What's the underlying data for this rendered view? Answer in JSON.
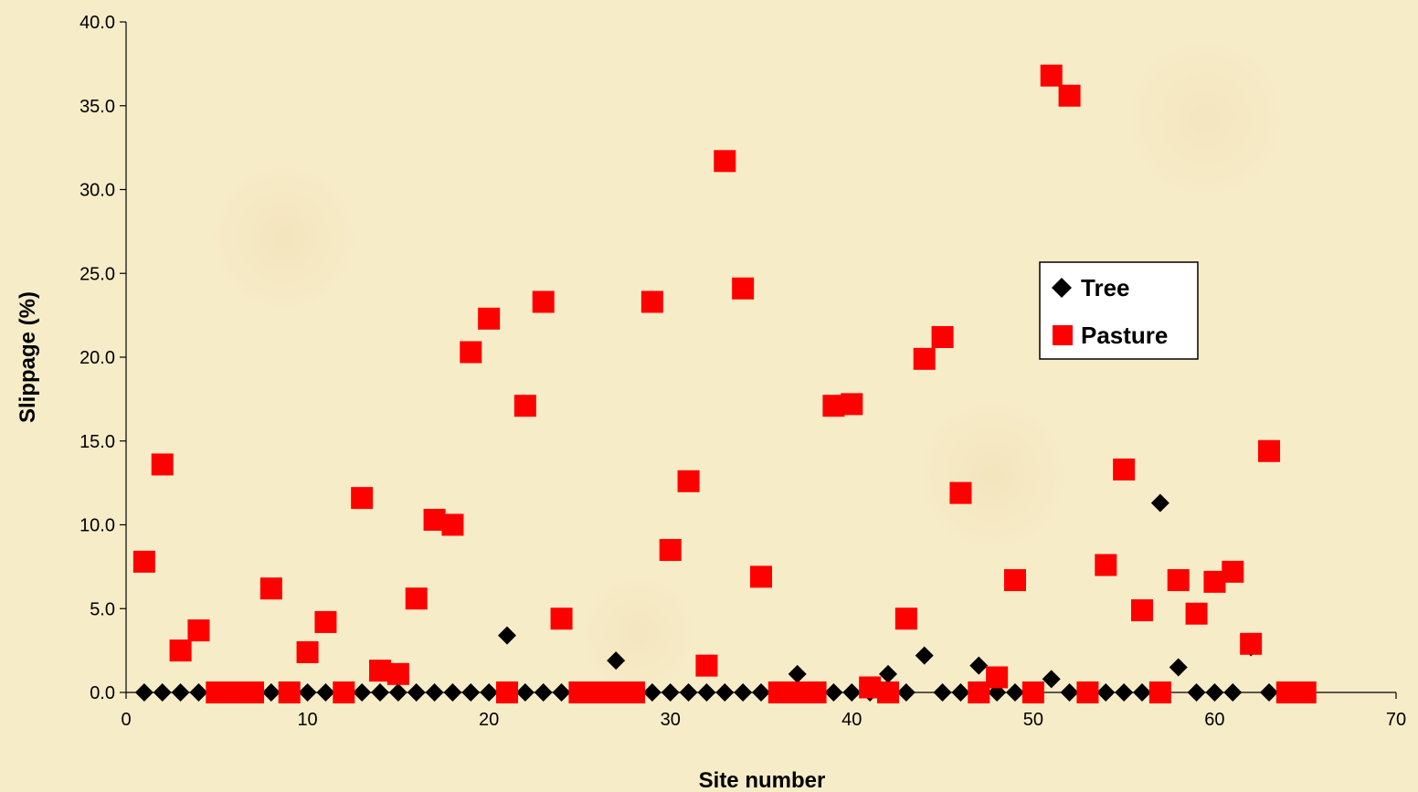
{
  "chart_data": {
    "type": "scatter",
    "title": "",
    "xlabel": "Site number",
    "ylabel": "Slippage (%)",
    "xlim": [
      0,
      70
    ],
    "ylim": [
      0,
      40
    ],
    "x_ticks": [
      "0",
      "10",
      "20",
      "30",
      "40",
      "50",
      "60",
      "70"
    ],
    "y_ticks": [
      "0.0",
      "5.0",
      "10.0",
      "15.0",
      "20.0",
      "25.0",
      "30.0",
      "35.0",
      "40.0"
    ],
    "x_tick_values": [
      0,
      10,
      20,
      30,
      40,
      50,
      60,
      70
    ],
    "y_tick_values": [
      0,
      5,
      10,
      15,
      20,
      25,
      30,
      35,
      40
    ],
    "grid": false,
    "legend_position": "right",
    "series": [
      {
        "name": "Tree",
        "marker": "diamond",
        "color": "#000000",
        "points": [
          [
            1,
            0
          ],
          [
            2,
            0
          ],
          [
            3,
            0
          ],
          [
            4,
            0
          ],
          [
            5,
            0
          ],
          [
            6,
            0
          ],
          [
            7,
            0
          ],
          [
            8,
            0
          ],
          [
            9,
            0
          ],
          [
            10,
            0
          ],
          [
            11,
            0
          ],
          [
            12,
            0
          ],
          [
            13,
            0
          ],
          [
            14,
            0
          ],
          [
            15,
            0
          ],
          [
            16,
            0
          ],
          [
            17,
            0
          ],
          [
            18,
            0
          ],
          [
            19,
            0
          ],
          [
            20,
            0
          ],
          [
            21,
            3.4
          ],
          [
            22,
            0
          ],
          [
            23,
            0
          ],
          [
            24,
            0
          ],
          [
            25,
            0
          ],
          [
            26,
            0
          ],
          [
            27,
            1.9
          ],
          [
            28,
            0
          ],
          [
            29,
            0
          ],
          [
            30,
            0
          ],
          [
            31,
            0
          ],
          [
            32,
            0
          ],
          [
            33,
            0
          ],
          [
            34,
            0
          ],
          [
            35,
            0
          ],
          [
            36,
            0
          ],
          [
            37,
            1.1
          ],
          [
            38,
            0
          ],
          [
            39,
            0
          ],
          [
            40,
            0
          ],
          [
            41,
            0
          ],
          [
            42,
            1.1
          ],
          [
            43,
            0
          ],
          [
            44,
            2.2
          ],
          [
            45,
            0
          ],
          [
            46,
            0
          ],
          [
            47,
            1.6
          ],
          [
            48,
            0
          ],
          [
            49,
            0
          ],
          [
            50,
            0
          ],
          [
            51,
            0.8
          ],
          [
            52,
            0
          ],
          [
            53,
            0
          ],
          [
            54,
            0
          ],
          [
            55,
            0
          ],
          [
            56,
            0
          ],
          [
            57,
            11.3
          ],
          [
            58,
            1.5
          ],
          [
            59,
            0
          ],
          [
            60,
            0
          ],
          [
            61,
            0
          ],
          [
            62,
            2.7
          ],
          [
            63,
            0
          ],
          [
            64,
            0
          ],
          [
            65,
            0
          ]
        ]
      },
      {
        "name": "Pasture",
        "marker": "square",
        "color": "#ff0000",
        "points": [
          [
            1,
            7.8
          ],
          [
            2,
            13.6
          ],
          [
            3,
            2.5
          ],
          [
            4,
            3.7
          ],
          [
            5,
            0
          ],
          [
            6,
            0
          ],
          [
            7,
            0
          ],
          [
            8,
            6.2
          ],
          [
            9,
            0
          ],
          [
            10,
            2.4
          ],
          [
            11,
            4.2
          ],
          [
            12,
            0
          ],
          [
            13,
            11.6
          ],
          [
            14,
            1.3
          ],
          [
            15,
            1.1
          ],
          [
            16,
            5.6
          ],
          [
            17,
            10.3
          ],
          [
            18,
            10.0
          ],
          [
            19,
            20.3
          ],
          [
            20,
            22.3
          ],
          [
            21,
            0
          ],
          [
            22,
            17.1
          ],
          [
            23,
            23.3
          ],
          [
            24,
            4.4
          ],
          [
            25,
            0
          ],
          [
            26,
            0
          ],
          [
            27,
            0
          ],
          [
            28,
            0
          ],
          [
            29,
            23.3
          ],
          [
            30,
            8.5
          ],
          [
            31,
            12.6
          ],
          [
            32,
            1.6
          ],
          [
            33,
            31.7
          ],
          [
            34,
            24.1
          ],
          [
            35,
            6.9
          ],
          [
            36,
            0
          ],
          [
            37,
            0
          ],
          [
            38,
            0
          ],
          [
            39,
            17.1
          ],
          [
            40,
            17.2
          ],
          [
            41,
            0.3
          ],
          [
            42,
            0
          ],
          [
            43,
            4.4
          ],
          [
            44,
            19.9
          ],
          [
            45,
            21.2
          ],
          [
            46,
            11.9
          ],
          [
            47,
            0
          ],
          [
            48,
            0.9
          ],
          [
            49,
            6.7
          ],
          [
            50,
            0
          ],
          [
            51,
            36.8
          ],
          [
            52,
            35.6
          ],
          [
            53,
            0
          ],
          [
            54,
            7.6
          ],
          [
            55,
            13.3
          ],
          [
            56,
            4.9
          ],
          [
            57,
            0
          ],
          [
            58,
            6.7
          ],
          [
            59,
            4.7
          ],
          [
            60,
            6.6
          ],
          [
            61,
            7.2
          ],
          [
            62,
            2.9
          ],
          [
            63,
            14.4
          ],
          [
            64,
            0
          ],
          [
            65,
            0
          ]
        ]
      }
    ]
  }
}
